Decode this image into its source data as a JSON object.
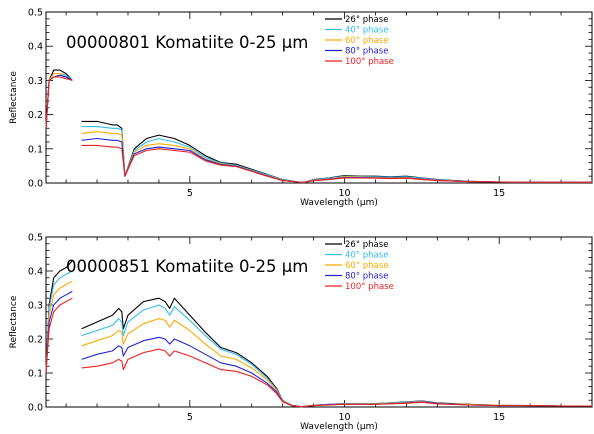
{
  "chart_data": [
    {
      "type": "line",
      "title": "00000801 Komatiite 0-25 μm",
      "xlabel": "Wavelength (μm)",
      "ylabel": "Reflectance",
      "xlim": [
        0.35,
        18
      ],
      "ylim": [
        0,
        0.5
      ],
      "xticks": [
        5,
        10,
        15
      ],
      "yticks": [
        0.0,
        0.1,
        0.2,
        0.3,
        0.4,
        0.5
      ],
      "legend_position": "top-right",
      "grid": false,
      "series": [
        {
          "name": "26° phase",
          "color": "#000000",
          "x": [
            0.35,
            0.45,
            0.6,
            0.8,
            1.0,
            1.2,
            1.5,
            1.5,
            2.0,
            2.5,
            2.65,
            2.8,
            2.9,
            3.2,
            3.6,
            4.0,
            4.5,
            5.0,
            5.5,
            6.0,
            6.5,
            7.0,
            7.5,
            8.0,
            8.5,
            8.7,
            9.0,
            9.5,
            10.0,
            10.5,
            11.0,
            11.5,
            12.0,
            12.5,
            13.0,
            14.0,
            15.0,
            16.0,
            17.0,
            18.0
          ],
          "y": [
            0.16,
            0.3,
            0.33,
            0.33,
            0.32,
            0.3,
            null,
            0.18,
            0.18,
            0.17,
            0.17,
            0.16,
            0.02,
            0.1,
            0.13,
            0.14,
            0.13,
            0.11,
            0.08,
            0.06,
            0.055,
            0.04,
            0.025,
            0.01,
            0.003,
            0.002,
            0.01,
            0.015,
            0.022,
            0.02,
            0.02,
            0.018,
            0.02,
            0.015,
            0.01,
            0.005,
            0.003,
            0.002,
            0.002,
            0.002
          ]
        },
        {
          "name": "40° phase",
          "color": "#33bbee",
          "x": [
            0.35,
            0.45,
            0.6,
            0.8,
            1.0,
            1.2,
            1.5,
            1.5,
            2.0,
            2.5,
            2.65,
            2.8,
            2.9,
            3.2,
            3.6,
            4.0,
            4.5,
            5.0,
            5.5,
            6.0,
            6.5,
            7.0,
            7.5,
            8.0,
            8.5,
            8.7,
            9.0,
            9.5,
            10.0,
            10.5,
            11.0,
            11.5,
            12.0,
            12.5,
            13.0,
            14.0,
            15.0,
            16.0,
            17.0,
            18.0
          ],
          "y": [
            0.16,
            0.3,
            0.32,
            0.32,
            0.315,
            0.3,
            null,
            0.165,
            0.165,
            0.16,
            0.16,
            0.155,
            0.02,
            0.095,
            0.12,
            0.13,
            0.12,
            0.105,
            0.075,
            0.058,
            0.052,
            0.038,
            0.024,
            0.009,
            0.003,
            0.002,
            0.009,
            0.014,
            0.02,
            0.019,
            0.018,
            0.017,
            0.018,
            0.014,
            0.009,
            0.005,
            0.003,
            0.002,
            0.002,
            0.002
          ]
        },
        {
          "name": "60° phase",
          "color": "#ffaa00",
          "x": [
            0.35,
            0.45,
            0.6,
            0.8,
            1.0,
            1.2,
            1.5,
            1.5,
            2.0,
            2.5,
            2.65,
            2.8,
            2.9,
            3.2,
            3.6,
            4.0,
            4.5,
            5.0,
            5.5,
            6.0,
            6.5,
            7.0,
            7.5,
            8.0,
            8.5,
            8.7,
            9.0,
            9.5,
            10.0,
            10.5,
            11.0,
            11.5,
            12.0,
            12.5,
            13.0,
            14.0,
            15.0,
            16.0,
            17.0,
            18.0
          ],
          "y": [
            0.16,
            0.3,
            0.32,
            0.32,
            0.31,
            0.3,
            null,
            0.145,
            0.15,
            0.145,
            0.145,
            0.14,
            0.02,
            0.09,
            0.11,
            0.115,
            0.11,
            0.1,
            0.07,
            0.056,
            0.05,
            0.036,
            0.022,
            0.008,
            0.003,
            0.002,
            0.008,
            0.012,
            0.018,
            0.017,
            0.016,
            0.015,
            0.016,
            0.012,
            0.008,
            0.004,
            0.003,
            0.002,
            0.002,
            0.002
          ]
        },
        {
          "name": "80° phase",
          "color": "#2222dd",
          "x": [
            0.35,
            0.45,
            0.6,
            0.8,
            1.0,
            1.2,
            1.5,
            1.5,
            2.0,
            2.5,
            2.65,
            2.8,
            2.9,
            3.2,
            3.6,
            4.0,
            4.5,
            5.0,
            5.5,
            6.0,
            6.5,
            7.0,
            7.5,
            8.0,
            8.5,
            8.7,
            9.0,
            9.5,
            10.0,
            10.5,
            11.0,
            11.5,
            12.0,
            12.5,
            13.0,
            14.0,
            15.0,
            16.0,
            17.0,
            18.0
          ],
          "y": [
            0.16,
            0.3,
            0.31,
            0.315,
            0.31,
            0.3,
            null,
            0.125,
            0.13,
            0.125,
            0.125,
            0.12,
            0.02,
            0.085,
            0.1,
            0.105,
            0.1,
            0.095,
            0.068,
            0.054,
            0.049,
            0.035,
            0.021,
            0.007,
            0.003,
            0.002,
            0.007,
            0.011,
            0.016,
            0.016,
            0.015,
            0.014,
            0.015,
            0.011,
            0.007,
            0.004,
            0.003,
            0.002,
            0.002,
            0.002
          ]
        },
        {
          "name": "100° phase",
          "color": "#ee2222",
          "x": [
            0.35,
            0.45,
            0.6,
            0.8,
            1.0,
            1.2,
            1.5,
            1.5,
            2.0,
            2.5,
            2.65,
            2.8,
            2.9,
            3.2,
            3.6,
            4.0,
            4.5,
            5.0,
            5.5,
            6.0,
            6.5,
            7.0,
            7.5,
            8.0,
            8.5,
            8.7,
            9.0,
            9.5,
            10.0,
            10.5,
            11.0,
            11.5,
            12.0,
            12.5,
            13.0,
            14.0,
            15.0,
            16.0,
            17.0,
            18.0
          ],
          "y": [
            0.16,
            0.3,
            0.31,
            0.31,
            0.305,
            0.3,
            null,
            0.11,
            0.11,
            0.105,
            0.105,
            0.1,
            0.02,
            0.08,
            0.095,
            0.1,
            0.095,
            0.09,
            0.065,
            0.052,
            0.048,
            0.034,
            0.02,
            0.007,
            0.003,
            0.002,
            0.007,
            0.01,
            0.015,
            0.015,
            0.014,
            0.013,
            0.014,
            0.01,
            0.007,
            0.004,
            0.003,
            0.002,
            0.002,
            0.002
          ]
        }
      ]
    },
    {
      "type": "line",
      "title": "00000851 Komatiite 0-25 μm",
      "xlabel": "Wavelength (μm)",
      "ylabel": "Reflectance",
      "xlim": [
        0.35,
        18
      ],
      "ylim": [
        0,
        0.5
      ],
      "xticks": [
        5,
        10,
        15
      ],
      "yticks": [
        0.0,
        0.1,
        0.2,
        0.3,
        0.4,
        0.5
      ],
      "legend_position": "top-right",
      "grid": false,
      "series": [
        {
          "name": "26° phase",
          "color": "#000000",
          "x": [
            0.35,
            0.45,
            0.6,
            0.8,
            1.0,
            1.2,
            1.5,
            1.5,
            2.0,
            2.5,
            2.7,
            2.8,
            2.85,
            3.0,
            3.5,
            4.0,
            4.2,
            4.35,
            4.5,
            5.0,
            5.5,
            6.0,
            6.5,
            7.0,
            7.5,
            7.8,
            8.0,
            8.3,
            8.6,
            9.0,
            9.5,
            10.0,
            11.0,
            12.0,
            12.5,
            13.0,
            14.0,
            15.0,
            16.0,
            17.0,
            18.0
          ],
          "y": [
            0.1,
            0.3,
            0.38,
            0.4,
            0.41,
            0.43,
            null,
            0.23,
            0.25,
            0.27,
            0.29,
            0.28,
            0.23,
            0.27,
            0.31,
            0.32,
            0.31,
            0.29,
            0.32,
            0.27,
            0.22,
            0.175,
            0.16,
            0.13,
            0.09,
            0.055,
            0.02,
            0.005,
            0.001,
            0.005,
            0.008,
            0.01,
            0.01,
            0.015,
            0.018,
            0.012,
            0.008,
            0.005,
            0.004,
            0.003,
            0.003
          ]
        },
        {
          "name": "40° phase",
          "color": "#33bbee",
          "x": [
            0.35,
            0.45,
            0.6,
            0.8,
            1.0,
            1.2,
            1.5,
            1.5,
            2.0,
            2.5,
            2.7,
            2.8,
            2.85,
            3.0,
            3.5,
            4.0,
            4.2,
            4.35,
            4.5,
            5.0,
            5.5,
            6.0,
            6.5,
            7.0,
            7.5,
            7.8,
            8.0,
            8.3,
            8.6,
            9.0,
            9.5,
            10.0,
            11.0,
            12.0,
            12.5,
            13.0,
            14.0,
            15.0,
            16.0,
            17.0,
            18.0
          ],
          "y": [
            0.1,
            0.29,
            0.36,
            0.38,
            0.39,
            0.4,
            null,
            0.21,
            0.225,
            0.24,
            0.26,
            0.25,
            0.21,
            0.25,
            0.285,
            0.3,
            0.29,
            0.27,
            0.295,
            0.255,
            0.21,
            0.17,
            0.155,
            0.125,
            0.085,
            0.052,
            0.02,
            0.005,
            0.001,
            0.005,
            0.008,
            0.01,
            0.01,
            0.014,
            0.017,
            0.011,
            0.007,
            0.005,
            0.004,
            0.003,
            0.003
          ]
        },
        {
          "name": "60° phase",
          "color": "#ffaa00",
          "x": [
            0.35,
            0.45,
            0.6,
            0.8,
            1.0,
            1.2,
            1.5,
            1.5,
            2.0,
            2.5,
            2.7,
            2.8,
            2.85,
            3.0,
            3.5,
            4.0,
            4.2,
            4.35,
            4.5,
            5.0,
            5.5,
            6.0,
            6.5,
            7.0,
            7.5,
            7.8,
            8.0,
            8.3,
            8.6,
            9.0,
            9.5,
            10.0,
            11.0,
            12.0,
            12.5,
            13.0,
            14.0,
            15.0,
            16.0,
            17.0,
            18.0
          ],
          "y": [
            0.1,
            0.27,
            0.33,
            0.35,
            0.36,
            0.37,
            null,
            0.18,
            0.195,
            0.21,
            0.225,
            0.22,
            0.185,
            0.215,
            0.245,
            0.26,
            0.255,
            0.235,
            0.255,
            0.225,
            0.185,
            0.15,
            0.14,
            0.115,
            0.08,
            0.05,
            0.018,
            0.004,
            0.001,
            0.005,
            0.007,
            0.009,
            0.009,
            0.013,
            0.016,
            0.01,
            0.007,
            0.005,
            0.004,
            0.003,
            0.003
          ]
        },
        {
          "name": "80° phase",
          "color": "#2222dd",
          "x": [
            0.35,
            0.45,
            0.6,
            0.8,
            1.0,
            1.2,
            1.5,
            1.5,
            2.0,
            2.5,
            2.7,
            2.8,
            2.85,
            3.0,
            3.5,
            4.0,
            4.2,
            4.35,
            4.5,
            5.0,
            5.5,
            6.0,
            6.5,
            7.0,
            7.5,
            7.8,
            8.0,
            8.3,
            8.6,
            9.0,
            9.5,
            10.0,
            11.0,
            12.0,
            12.5,
            13.0,
            14.0,
            15.0,
            16.0,
            17.0,
            18.0
          ],
          "y": [
            0.1,
            0.25,
            0.3,
            0.32,
            0.33,
            0.34,
            null,
            0.14,
            0.155,
            0.165,
            0.18,
            0.175,
            0.15,
            0.175,
            0.195,
            0.205,
            0.2,
            0.185,
            0.2,
            0.18,
            0.155,
            0.13,
            0.12,
            0.1,
            0.07,
            0.045,
            0.016,
            0.004,
            0.001,
            0.004,
            0.007,
            0.008,
            0.008,
            0.012,
            0.015,
            0.01,
            0.006,
            0.004,
            0.004,
            0.003,
            0.003
          ]
        },
        {
          "name": "100° phase",
          "color": "#ee2222",
          "x": [
            0.35,
            0.45,
            0.6,
            0.8,
            1.0,
            1.2,
            1.5,
            1.5,
            2.0,
            2.5,
            2.7,
            2.8,
            2.85,
            3.0,
            3.5,
            4.0,
            4.2,
            4.35,
            4.5,
            5.0,
            5.5,
            6.0,
            6.5,
            7.0,
            7.5,
            7.8,
            8.0,
            8.3,
            8.6,
            9.0,
            9.5,
            10.0,
            11.0,
            12.0,
            12.5,
            13.0,
            14.0,
            15.0,
            16.0,
            17.0,
            18.0
          ],
          "y": [
            0.1,
            0.23,
            0.28,
            0.3,
            0.31,
            0.32,
            null,
            0.115,
            0.12,
            0.13,
            0.14,
            0.135,
            0.11,
            0.14,
            0.16,
            0.17,
            0.165,
            0.15,
            0.165,
            0.15,
            0.13,
            0.11,
            0.105,
            0.09,
            0.065,
            0.04,
            0.015,
            0.004,
            0.001,
            0.004,
            0.006,
            0.008,
            0.008,
            0.011,
            0.014,
            0.009,
            0.006,
            0.004,
            0.004,
            0.003,
            0.003
          ]
        }
      ]
    }
  ]
}
